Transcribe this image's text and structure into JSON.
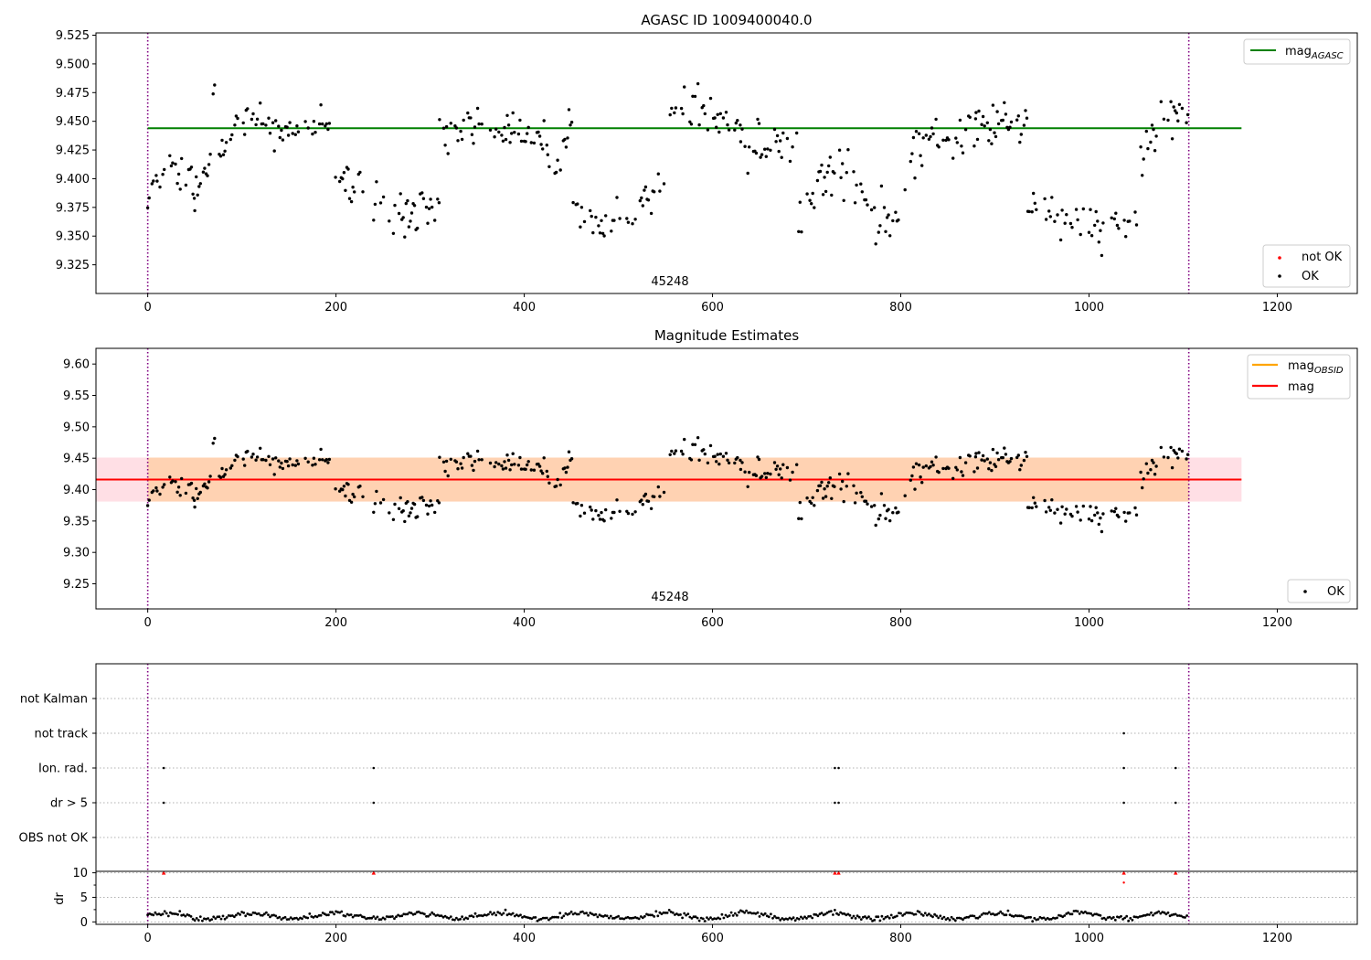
{
  "chart_data": [
    {
      "type": "scatter",
      "title": "AGASC ID 1009400040.0",
      "annotation": "45248",
      "xlim": [
        -55,
        1285
      ],
      "ylim": [
        9.3,
        9.527
      ],
      "xticks": [
        0,
        200,
        400,
        600,
        800,
        1000,
        1200
      ],
      "yticks": [
        9.325,
        9.35,
        9.375,
        9.4,
        9.425,
        9.45,
        9.475,
        9.5,
        9.525
      ],
      "ytick_labels": [
        "9.325",
        "9.350",
        "9.375",
        "9.400",
        "9.425",
        "9.450",
        "9.475",
        "9.500",
        "9.525"
      ],
      "vlines": [
        0,
        1106
      ],
      "hline": {
        "y": 9.444,
        "x0": 0,
        "x1": 1162,
        "color": "#008000"
      },
      "legend_upper": {
        "label_main": "mag",
        "label_sub": "AGASC",
        "color": "#008000"
      },
      "legend_lower": [
        {
          "label": "not OK",
          "color": "#ff0000"
        },
        {
          "label": "OK",
          "color": "#000000"
        }
      ],
      "series": [
        {
          "name": "OK",
          "color": "#000000",
          "x": [],
          "y": []
        },
        {
          "name": "not OK",
          "color": "#ff0000",
          "x": [],
          "y": []
        }
      ]
    },
    {
      "type": "scatter",
      "title": "Magnitude Estimates",
      "annotation": "45248",
      "xlim": [
        -55,
        1285
      ],
      "ylim": [
        9.21,
        9.625
      ],
      "xticks": [
        0,
        200,
        400,
        600,
        800,
        1000,
        1200
      ],
      "yticks": [
        9.25,
        9.3,
        9.35,
        9.4,
        9.45,
        9.5,
        9.55,
        9.6
      ],
      "ytick_labels": [
        "9.25",
        "9.30",
        "9.35",
        "9.40",
        "9.45",
        "9.50",
        "9.55",
        "9.60"
      ],
      "vlines": [
        0,
        1106
      ],
      "mag_line": {
        "y": 9.416,
        "x0": -55,
        "x1": 1162,
        "color": "#ff0000"
      },
      "mag_band": {
        "y0": 9.381,
        "y1": 9.451,
        "x0": -55,
        "x1": 1162,
        "color": "#ffc0cb"
      },
      "obsid_band": {
        "y0": 9.381,
        "y1": 9.451,
        "x0": 0,
        "x1": 1106,
        "color": "#ffa500"
      },
      "legend_upper": [
        {
          "label_main": "mag",
          "label_sub": "OBSID",
          "color": "#ffa500"
        },
        {
          "label_main": "mag",
          "label_sub": "",
          "color": "#ff0000"
        }
      ],
      "legend_lower": [
        {
          "label": "OK",
          "color": "#000000"
        }
      ],
      "series": [
        {
          "name": "OK",
          "color": "#000000",
          "x": [],
          "y": []
        }
      ]
    },
    {
      "type": "scatter",
      "xlim": [
        -55,
        1285
      ],
      "xticks": [
        0,
        200,
        400,
        600,
        800,
        1000,
        1200
      ],
      "vlines": [
        0,
        1106
      ],
      "flag_labels": [
        "not Kalman",
        "not track",
        "Ion. rad.",
        "dr > 5",
        "OBS not OK"
      ],
      "flags": {
        "not track": [
          1037
        ],
        "Ion. rad.": [
          17,
          240,
          730,
          734,
          1037,
          1092
        ],
        "dr > 5": [
          17,
          240,
          730,
          734,
          1037,
          1092
        ],
        "OBS not OK": [],
        "not Kalman": []
      },
      "dr": {
        "ylabel": "dr",
        "yticks": [
          0,
          5,
          10
        ],
        "ylim": [
          -0.5,
          10.3
        ],
        "clipped": [
          {
            "x": 17,
            "y": 10
          },
          {
            "x": 240,
            "y": 10
          },
          {
            "x": 730,
            "y": 10
          },
          {
            "x": 734,
            "y": 10
          },
          {
            "x": 1037,
            "y": 10
          },
          {
            "x": 1092,
            "y": 10
          }
        ],
        "extra_red": [
          {
            "x": 1037,
            "y": 8
          }
        ]
      }
    }
  ]
}
